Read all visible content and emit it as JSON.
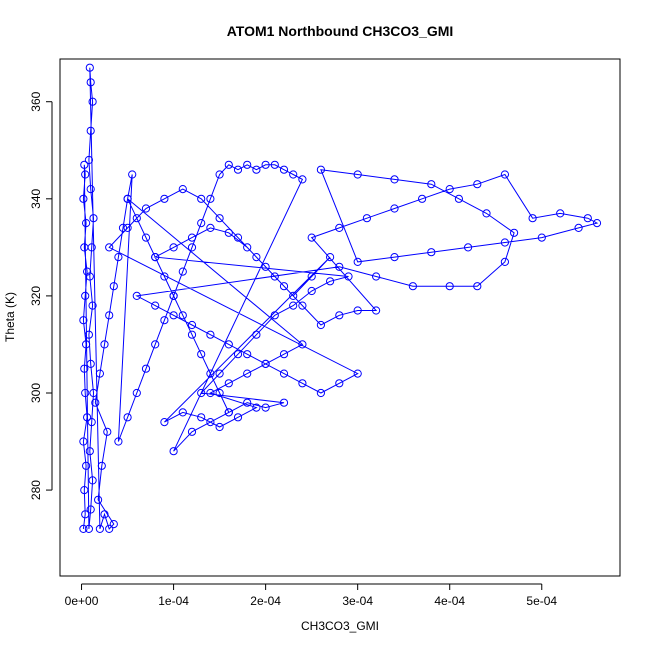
{
  "chart_data": {
    "type": "scatter",
    "title": "ATOM1 Northbound CH3CO3_GMI",
    "xlabel": "CH3CO3_GMI",
    "ylabel": "Theta (K)",
    "xlim": [
      -2.34e-05,
      0.000585
    ],
    "ylim": [
      262.3,
      368.8
    ],
    "x_ticks": [
      0,
      0.0001,
      0.0002,
      0.0003,
      0.0004,
      0.0005
    ],
    "x_tick_labels": [
      "0e+00",
      "1e-04",
      "2e-04",
      "3e-04",
      "4e-04",
      "5e-04"
    ],
    "y_ticks": [
      280,
      300,
      320,
      340,
      360
    ],
    "y_tick_labels": [
      "280",
      "300",
      "320",
      "340",
      "360"
    ],
    "grid": false,
    "marker": "open-circle",
    "color": "#0000ff",
    "series": [
      {
        "points": [
          [
            2e-06,
            272
          ],
          [
            4e-06,
            275
          ],
          [
            3e-06,
            280
          ],
          [
            5e-06,
            285
          ],
          [
            2e-06,
            290
          ],
          [
            6e-06,
            295
          ],
          [
            4e-06,
            300
          ],
          [
            3e-06,
            305
          ],
          [
            5e-06,
            310
          ],
          [
            2e-06,
            315
          ],
          [
            4e-06,
            320
          ],
          [
            6e-06,
            325
          ],
          [
            3e-06,
            330
          ],
          [
            5e-06,
            335
          ],
          [
            2e-06,
            340
          ],
          [
            4e-06,
            345
          ],
          [
            3e-06,
            347
          ],
          [
            8e-06,
            272
          ],
          [
            1e-05,
            276
          ],
          [
            1.2e-05,
            282
          ],
          [
            9e-06,
            288
          ],
          [
            1.1e-05,
            294
          ],
          [
            1.3e-05,
            300
          ],
          [
            1e-05,
            306
          ],
          [
            8e-06,
            312
          ],
          [
            1.2e-05,
            318
          ],
          [
            9e-06,
            324
          ],
          [
            1.1e-05,
            330
          ],
          [
            1.3e-05,
            336
          ],
          [
            1e-05,
            342
          ],
          [
            8e-06,
            348
          ],
          [
            1e-05,
            354
          ],
          [
            1.2e-05,
            360
          ],
          [
            1e-05,
            364
          ],
          [
            9e-06,
            367
          ],
          [
            2e-05,
            272
          ],
          [
            2.5e-05,
            275
          ],
          [
            3e-05,
            272
          ],
          [
            3.5e-05,
            273
          ],
          [
            1.8e-05,
            278
          ],
          [
            2.2e-05,
            285
          ],
          [
            2.8e-05,
            292
          ],
          [
            1.5e-05,
            298
          ],
          [
            2e-05,
            304
          ],
          [
            2.5e-05,
            310
          ],
          [
            3e-05,
            316
          ],
          [
            3.5e-05,
            322
          ],
          [
            4e-05,
            328
          ],
          [
            4.5e-05,
            334
          ],
          [
            5e-05,
            340
          ],
          [
            5.5e-05,
            345
          ],
          [
            4e-05,
            290
          ],
          [
            5e-05,
            295
          ],
          [
            6e-05,
            300
          ],
          [
            7e-05,
            305
          ],
          [
            8e-05,
            310
          ],
          [
            9e-05,
            315
          ],
          [
            0.0001,
            320
          ],
          [
            0.00011,
            325
          ],
          [
            0.00012,
            330
          ],
          [
            0.00013,
            335
          ],
          [
            0.00014,
            340
          ],
          [
            0.00015,
            345
          ],
          [
            0.00016,
            347
          ],
          [
            0.00017,
            346
          ],
          [
            0.00018,
            347
          ],
          [
            0.00019,
            346
          ],
          [
            0.0002,
            347
          ],
          [
            0.00021,
            347
          ],
          [
            0.00022,
            346
          ],
          [
            0.00023,
            345
          ],
          [
            0.00024,
            344
          ],
          [
            0.0001,
            288
          ],
          [
            0.00012,
            292
          ],
          [
            0.00014,
            294
          ],
          [
            0.00016,
            296
          ],
          [
            0.00018,
            298
          ],
          [
            0.0002,
            297
          ],
          [
            0.00022,
            298
          ],
          [
            0.00013,
            300
          ],
          [
            0.00015,
            304
          ],
          [
            0.00017,
            308
          ],
          [
            0.00019,
            312
          ],
          [
            0.00021,
            316
          ],
          [
            0.00023,
            318
          ],
          [
            0.00025,
            321
          ],
          [
            0.00027,
            323
          ],
          [
            0.00029,
            324
          ],
          [
            8e-05,
            328
          ],
          [
            0.0001,
            330
          ],
          [
            0.00012,
            332
          ],
          [
            0.00014,
            334
          ],
          [
            0.00016,
            333
          ],
          [
            0.00018,
            330
          ],
          [
            0.0002,
            326
          ],
          [
            0.00022,
            322
          ],
          [
            0.00024,
            318
          ],
          [
            0.00026,
            314
          ],
          [
            0.00028,
            316
          ],
          [
            0.0003,
            317
          ],
          [
            0.00032,
            317
          ],
          [
            0.00025,
            332
          ],
          [
            0.00028,
            334
          ],
          [
            0.00031,
            336
          ],
          [
            0.00034,
            338
          ],
          [
            0.00037,
            340
          ],
          [
            0.0004,
            342
          ],
          [
            0.00043,
            343
          ],
          [
            0.00046,
            345
          ],
          [
            0.00049,
            336
          ],
          [
            0.00052,
            337
          ],
          [
            0.00055,
            336
          ],
          [
            0.00056,
            335
          ],
          [
            0.00054,
            334
          ],
          [
            0.0005,
            332
          ],
          [
            0.00046,
            331
          ],
          [
            0.00042,
            330
          ],
          [
            0.00038,
            329
          ],
          [
            0.00034,
            328
          ],
          [
            0.0003,
            327
          ],
          [
            0.00026,
            346
          ],
          [
            0.0003,
            345
          ],
          [
            0.00034,
            344
          ],
          [
            0.00038,
            343
          ],
          [
            0.00041,
            340
          ],
          [
            0.00044,
            337
          ],
          [
            0.00047,
            333
          ],
          [
            0.00046,
            327
          ],
          [
            0.00043,
            322
          ],
          [
            0.0004,
            322
          ],
          [
            0.00036,
            322
          ],
          [
            0.00032,
            324
          ],
          [
            0.00028,
            326
          ],
          [
            6e-05,
            320
          ],
          [
            8e-05,
            318
          ],
          [
            0.0001,
            316
          ],
          [
            0.00012,
            314
          ],
          [
            0.00014,
            312
          ],
          [
            0.00016,
            310
          ],
          [
            0.00018,
            308
          ],
          [
            0.0002,
            306
          ],
          [
            0.00022,
            304
          ],
          [
            0.00024,
            302
          ],
          [
            0.00026,
            300
          ],
          [
            0.00028,
            302
          ],
          [
            0.0003,
            304
          ],
          [
            3e-05,
            330
          ],
          [
            5e-05,
            334
          ],
          [
            7e-05,
            338
          ],
          [
            9e-05,
            340
          ],
          [
            0.00011,
            342
          ],
          [
            0.00013,
            340
          ],
          [
            0.00015,
            336
          ],
          [
            0.00017,
            332
          ],
          [
            0.00019,
            328
          ],
          [
            0.00021,
            324
          ],
          [
            0.00023,
            320
          ],
          [
            0.00025,
            324
          ],
          [
            0.00027,
            328
          ],
          [
            9e-05,
            294
          ],
          [
            0.00011,
            296
          ],
          [
            0.00013,
            295
          ],
          [
            0.00015,
            293
          ],
          [
            0.00017,
            295
          ],
          [
            0.00019,
            297
          ],
          [
            0.00014,
            300
          ],
          [
            0.00016,
            302
          ],
          [
            0.00018,
            304
          ],
          [
            0.0002,
            306
          ],
          [
            0.00022,
            308
          ],
          [
            0.00024,
            310
          ],
          [
            5e-05,
            340
          ],
          [
            6e-05,
            336
          ],
          [
            7e-05,
            332
          ],
          [
            8e-05,
            328
          ],
          [
            9e-05,
            324
          ],
          [
            0.0001,
            320
          ],
          [
            0.00011,
            316
          ],
          [
            0.00012,
            312
          ],
          [
            0.00013,
            308
          ],
          [
            0.00014,
            304
          ],
          [
            0.00015,
            300
          ],
          [
            0.00016,
            296
          ]
        ]
      }
    ]
  }
}
